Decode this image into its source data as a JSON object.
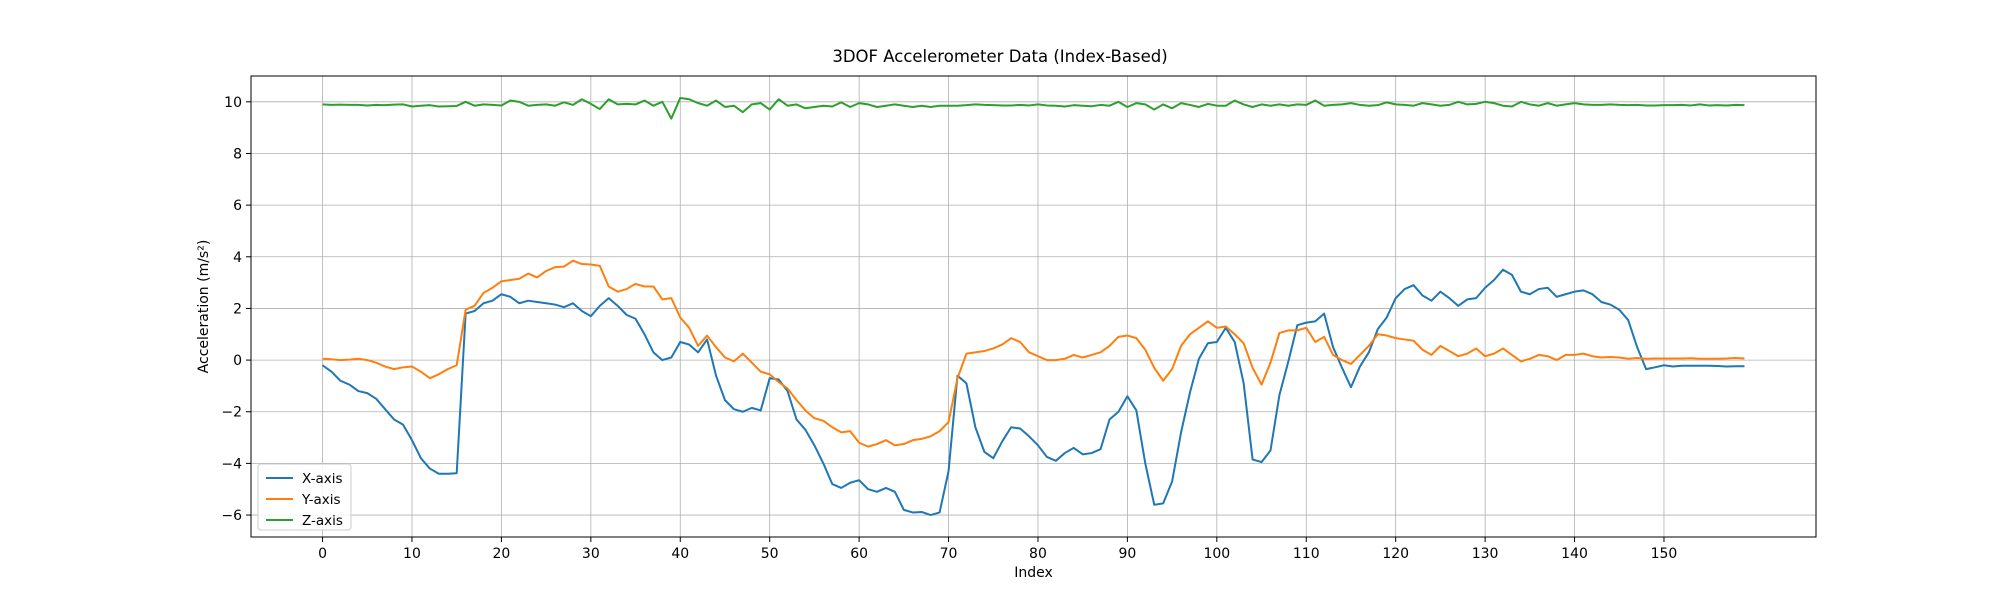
{
  "chart_data": {
    "type": "line",
    "title": "3DOF Accelerometer Data (Index-Based)",
    "xlabel": "Index",
    "ylabel": "Acceleration (m/s²)",
    "xlim": [
      -8,
      167
    ],
    "ylim": [
      -6.85,
      11.0
    ],
    "xticks": [
      0,
      10,
      20,
      30,
      40,
      50,
      60,
      70,
      80,
      90,
      100,
      110,
      120,
      130,
      140,
      150
    ],
    "yticks": [
      -6,
      -4,
      -2,
      0,
      2,
      4,
      6,
      8,
      10
    ],
    "grid": true,
    "legend_position": "lower-left",
    "series": [
      {
        "name": "X-axis",
        "color": "#1f77b4",
        "values": [
          -0.2,
          -0.45,
          -0.8,
          -0.95,
          -1.2,
          -1.28,
          -1.5,
          -1.9,
          -2.3,
          -2.5,
          -3.1,
          -3.8,
          -4.2,
          -4.4,
          -4.4,
          -4.38,
          1.8,
          1.9,
          2.2,
          2.3,
          2.55,
          2.45,
          2.2,
          2.3,
          2.25,
          2.2,
          2.15,
          2.05,
          2.2,
          1.9,
          1.7,
          2.1,
          2.4,
          2.1,
          1.75,
          1.6,
          1.0,
          0.3,
          0.0,
          0.1,
          0.7,
          0.6,
          0.3,
          0.8,
          -0.6,
          -1.55,
          -1.9,
          -2.0,
          -1.85,
          -1.95,
          -0.7,
          -0.75,
          -1.2,
          -2.3,
          -2.7,
          -3.3,
          -4.0,
          -4.8,
          -4.95,
          -4.75,
          -4.65,
          -5.0,
          -5.1,
          -4.95,
          -5.1,
          -5.8,
          -5.9,
          -5.88,
          -6.0,
          -5.9,
          -4.3,
          -0.6,
          -0.9,
          -2.6,
          -3.55,
          -3.8,
          -3.15,
          -2.6,
          -2.65,
          -2.95,
          -3.3,
          -3.75,
          -3.9,
          -3.6,
          -3.4,
          -3.65,
          -3.6,
          -3.45,
          -2.3,
          -2.0,
          -1.4,
          -1.95,
          -4.0,
          -5.6,
          -5.55,
          -4.7,
          -2.8,
          -1.25,
          0.05,
          0.65,
          0.7,
          1.25,
          0.7,
          -0.9,
          -3.85,
          -3.95,
          -3.5,
          -1.35,
          -0.05,
          1.35,
          1.45,
          1.5,
          1.8,
          0.5,
          -0.3,
          -1.05,
          -0.25,
          0.3,
          1.2,
          1.65,
          2.4,
          2.75,
          2.9,
          2.5,
          2.3,
          2.65,
          2.4,
          2.1,
          2.35,
          2.4,
          2.8,
          3.1,
          3.5,
          3.3,
          2.65,
          2.55,
          2.75,
          2.8,
          2.45,
          2.55,
          2.65,
          2.7,
          2.55,
          2.25,
          2.15,
          1.95,
          1.55,
          0.5,
          -0.35,
          -0.28,
          -0.2,
          -0.25,
          -0.22,
          -0.22,
          -0.22,
          -0.22,
          -0.23,
          -0.25,
          -0.24,
          -0.24
        ]
      },
      {
        "name": "Y-axis",
        "color": "#ff7f0e",
        "values": [
          0.05,
          0.03,
          0.0,
          0.02,
          0.05,
          0.0,
          -0.1,
          -0.25,
          -0.35,
          -0.28,
          -0.25,
          -0.45,
          -0.7,
          -0.55,
          -0.35,
          -0.2,
          1.95,
          2.1,
          2.6,
          2.8,
          3.05,
          3.1,
          3.15,
          3.35,
          3.2,
          3.45,
          3.6,
          3.62,
          3.85,
          3.72,
          3.7,
          3.65,
          2.85,
          2.65,
          2.75,
          2.95,
          2.85,
          2.85,
          2.35,
          2.4,
          1.65,
          1.25,
          0.55,
          0.95,
          0.5,
          0.1,
          -0.05,
          0.25,
          -0.1,
          -0.45,
          -0.55,
          -0.85,
          -1.1,
          -1.55,
          -1.95,
          -2.25,
          -2.35,
          -2.6,
          -2.8,
          -2.75,
          -3.2,
          -3.35,
          -3.25,
          -3.1,
          -3.3,
          -3.25,
          -3.1,
          -3.05,
          -2.95,
          -2.75,
          -2.4,
          -0.7,
          0.25,
          0.3,
          0.35,
          0.45,
          0.6,
          0.85,
          0.7,
          0.3,
          0.15,
          0.0,
          0.0,
          0.05,
          0.2,
          0.1,
          0.2,
          0.3,
          0.55,
          0.9,
          0.95,
          0.85,
          0.4,
          -0.3,
          -0.8,
          -0.35,
          0.55,
          1.0,
          1.25,
          1.5,
          1.25,
          1.3,
          1.0,
          0.65,
          -0.3,
          -0.95,
          -0.1,
          1.05,
          1.15,
          1.15,
          1.25,
          0.7,
          0.9,
          0.2,
          0.0,
          -0.15,
          0.2,
          0.55,
          1.0,
          0.95,
          0.85,
          0.8,
          0.75,
          0.4,
          0.2,
          0.55,
          0.35,
          0.15,
          0.25,
          0.45,
          0.15,
          0.25,
          0.45,
          0.2,
          -0.05,
          0.05,
          0.2,
          0.15,
          0.0,
          0.2,
          0.2,
          0.25,
          0.15,
          0.1,
          0.12,
          0.1,
          0.05,
          0.08,
          0.05,
          0.06,
          0.06,
          0.06,
          0.06,
          0.07,
          0.05,
          0.05,
          0.05,
          0.06,
          0.08,
          0.06
        ]
      },
      {
        "name": "Z-axis",
        "color": "#2ca02c",
        "values": [
          9.9,
          9.88,
          9.89,
          9.88,
          9.88,
          9.86,
          9.88,
          9.87,
          9.89,
          9.9,
          9.82,
          9.85,
          9.87,
          9.82,
          9.83,
          9.84,
          10.0,
          9.85,
          9.9,
          9.88,
          9.86,
          10.05,
          10.0,
          9.85,
          9.88,
          9.9,
          9.85,
          9.98,
          9.88,
          10.1,
          9.92,
          9.72,
          10.1,
          9.9,
          9.92,
          9.9,
          10.05,
          9.85,
          10.0,
          9.35,
          10.15,
          10.1,
          9.95,
          9.85,
          10.05,
          9.8,
          9.85,
          9.6,
          9.9,
          9.95,
          9.7,
          10.1,
          9.85,
          9.9,
          9.75,
          9.8,
          9.85,
          9.82,
          9.98,
          9.8,
          9.95,
          9.9,
          9.8,
          9.85,
          9.9,
          9.85,
          9.8,
          9.85,
          9.8,
          9.85,
          9.85,
          9.85,
          9.87,
          9.9,
          9.88,
          9.87,
          9.86,
          9.86,
          9.88,
          9.86,
          9.9,
          9.86,
          9.85,
          9.82,
          9.87,
          9.85,
          9.83,
          9.88,
          9.85,
          10.0,
          9.8,
          9.95,
          9.9,
          9.7,
          9.9,
          9.75,
          9.95,
          9.88,
          9.8,
          9.92,
          9.85,
          9.85,
          10.05,
          9.9,
          9.8,
          9.9,
          9.85,
          9.9,
          9.85,
          9.9,
          9.88,
          10.05,
          9.85,
          9.88,
          9.9,
          9.95,
          9.88,
          9.85,
          9.87,
          9.98,
          9.9,
          9.88,
          9.85,
          9.95,
          9.9,
          9.85,
          9.88,
          10.0,
          9.9,
          9.92,
          10.0,
          9.95,
          9.85,
          9.82,
          10.0,
          9.9,
          9.85,
          9.95,
          9.85,
          9.9,
          9.95,
          9.9,
          9.88,
          9.88,
          9.9,
          9.88,
          9.87,
          9.88,
          9.86,
          9.86,
          9.87,
          9.87,
          9.88,
          9.86,
          9.9,
          9.86,
          9.87,
          9.86,
          9.88,
          9.87
        ]
      }
    ]
  }
}
